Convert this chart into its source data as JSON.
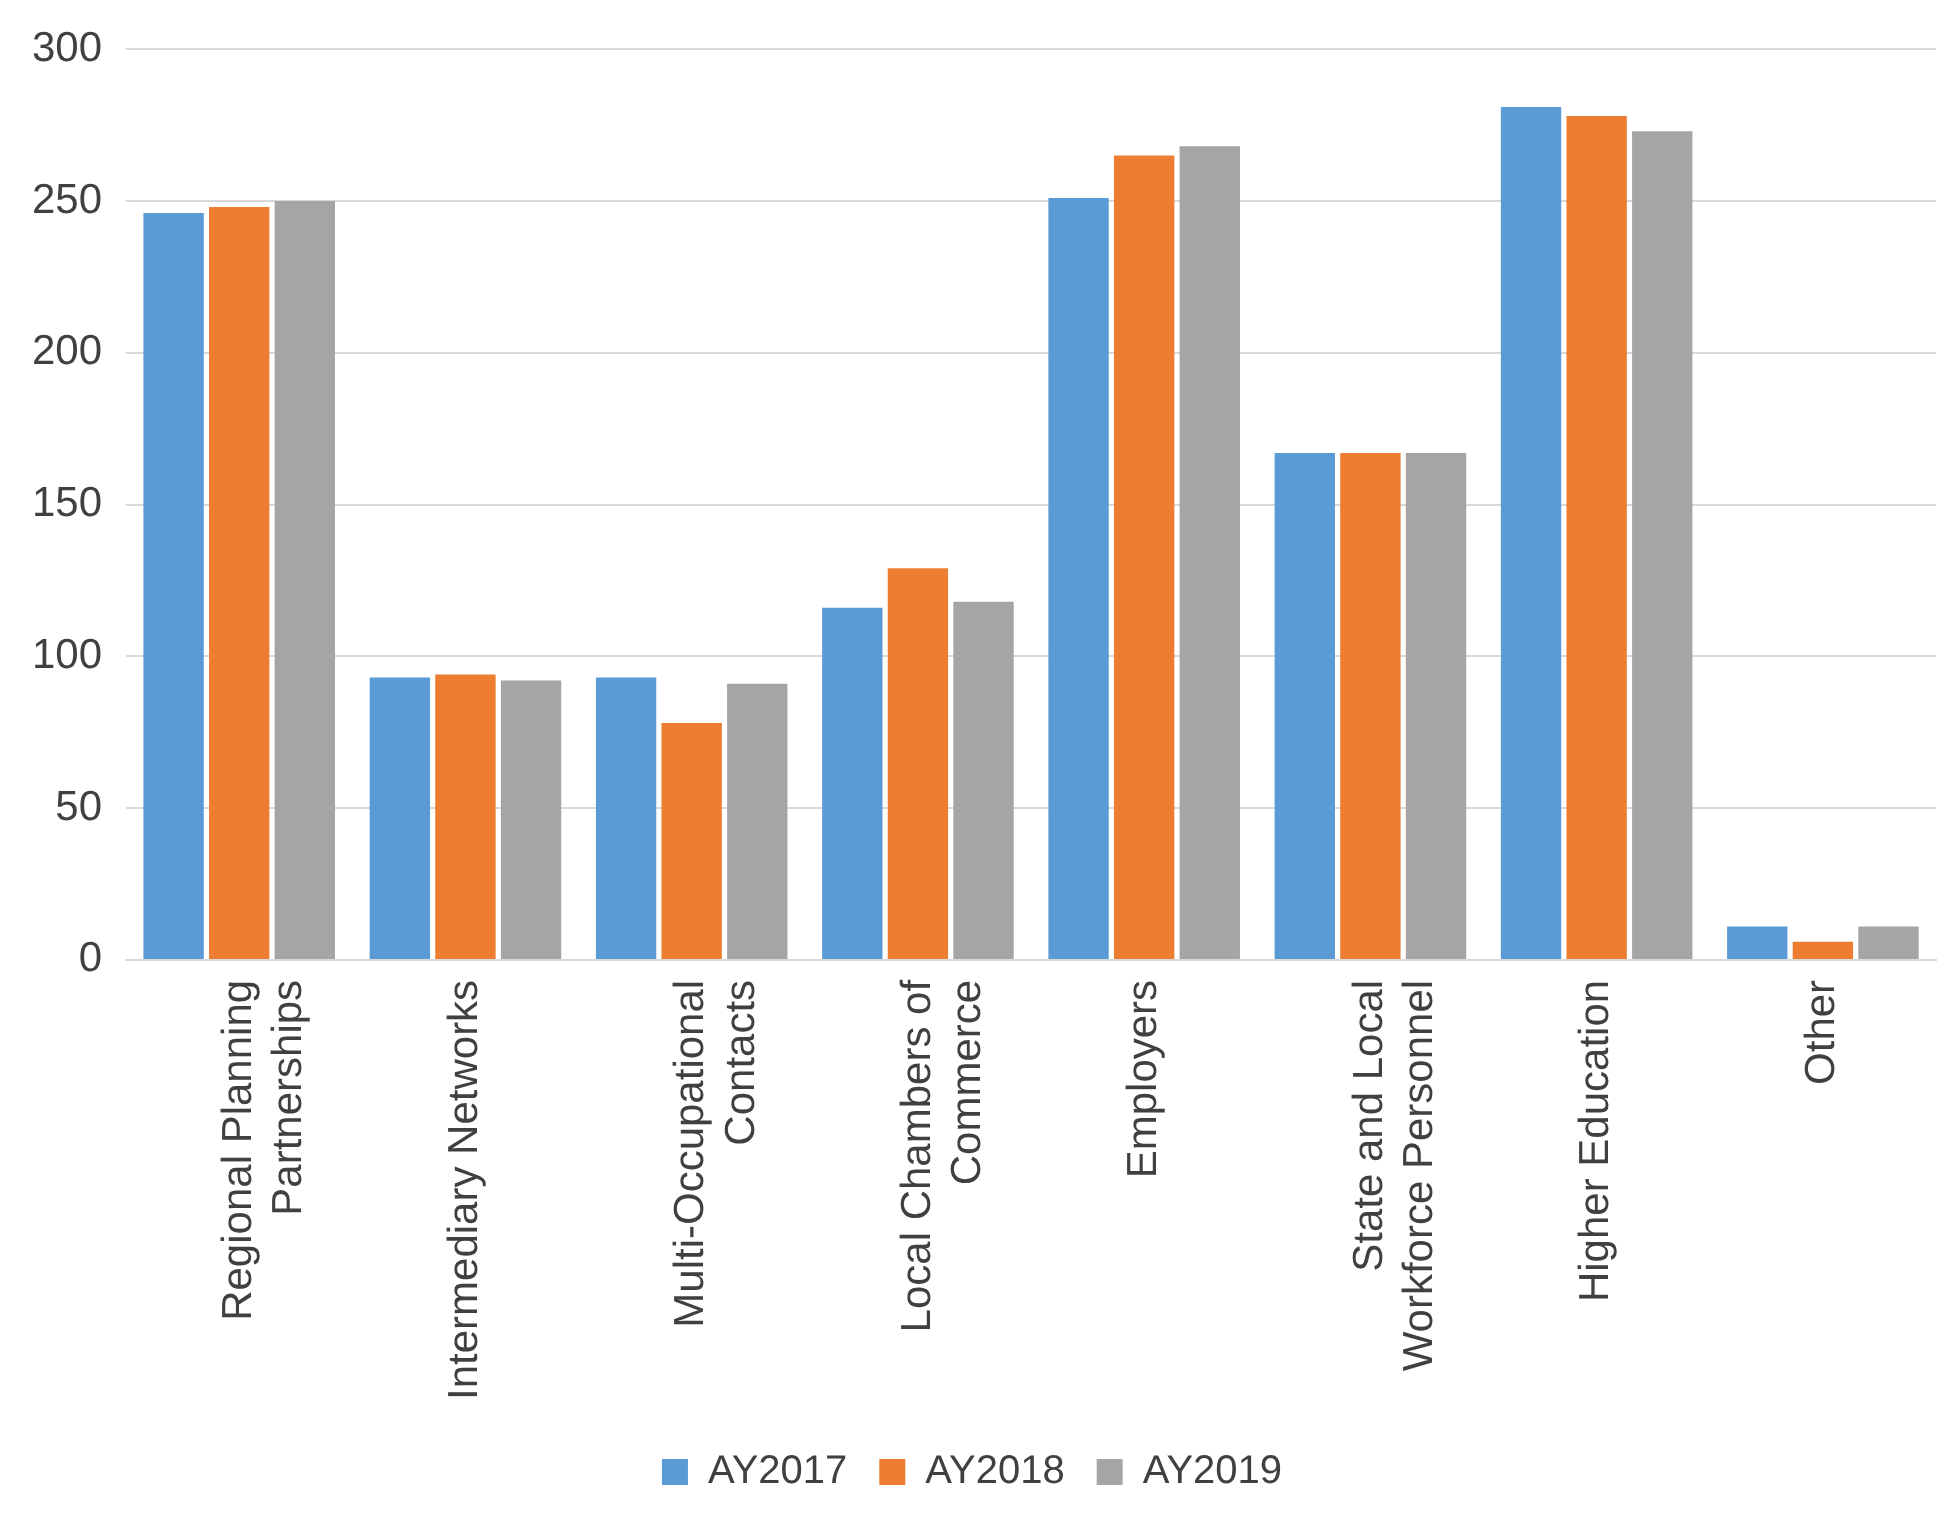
{
  "chart_data": {
    "type": "bar",
    "categories": [
      "Regional Planning Partnerships",
      "Intermediary Networks",
      "Multi-Occupational Contacts",
      "Local Chambers of Commerce",
      "Employers",
      "State and Local Workforce Personnel",
      "Higher Education",
      "Other"
    ],
    "series": [
      {
        "name": "AY2017",
        "color": "#5b9bd5",
        "values": [
          246,
          93,
          93,
          116,
          251,
          167,
          281,
          11
        ]
      },
      {
        "name": "AY2018",
        "color": "#ed7d31",
        "values": [
          248,
          94,
          78,
          129,
          265,
          167,
          278,
          6
        ]
      },
      {
        "name": "AY2019",
        "color": "#a5a5a5",
        "values": [
          250,
          92,
          91,
          118,
          268,
          167,
          273,
          11
        ]
      }
    ],
    "ylim": [
      0,
      300
    ],
    "yticks": [
      0,
      50,
      100,
      150,
      200,
      250,
      300
    ],
    "grid": "y",
    "legend": "bottom"
  }
}
